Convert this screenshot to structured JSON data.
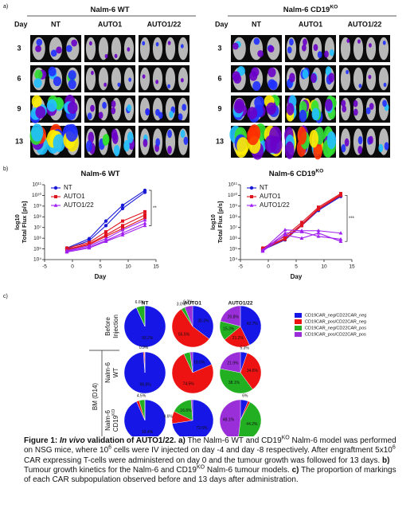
{
  "panel_a": {
    "label": "a)",
    "row_header": "Day",
    "days": [
      "3",
      "6",
      "9",
      "13"
    ],
    "groups": [
      {
        "title": {
          "text": "Nalm-6 WT"
        },
        "columns": [
          "NT",
          "AUTO1",
          "AUTO1/22"
        ]
      },
      {
        "title": {
          "text": "Nalm-6 CD19",
          "sup": "KO"
        },
        "columns": [
          "NT",
          "AUTO1",
          "AUTO1/22"
        ]
      }
    ]
  },
  "panel_b_label": "b)",
  "chart_data": [
    {
      "type": "line",
      "title": {
        "text": "Nalm-6 WT"
      },
      "x_label": "Day",
      "y_label": [
        "log10",
        "Total Flux [p/s]"
      ],
      "log_y": true,
      "legend": "top-left",
      "x": [
        -1,
        3,
        6,
        9,
        13
      ],
      "xlim": [
        -5,
        15
      ],
      "xticks": [
        -5,
        0,
        5,
        10,
        15
      ],
      "ylim": [
        10000,
        100000000000
      ],
      "yticks": [
        {
          "value": 10000,
          "label": "10⁴"
        },
        {
          "value": 100000,
          "label": "10⁵"
        },
        {
          "value": 1000000,
          "label": "10⁶"
        },
        {
          "value": 10000000,
          "label": "10⁷"
        },
        {
          "value": 100000000,
          "label": "10⁸"
        },
        {
          "value": 1000000000,
          "label": "10⁹"
        },
        {
          "value": 10000000000,
          "label": "10¹⁰"
        },
        {
          "value": 100000000000,
          "label": "10¹¹"
        }
      ],
      "annotation": "**",
      "series": [
        {
          "name": "NT",
          "color": "#1a1ad6",
          "marker": "circle",
          "mice": [
            [
              120000,
              900000,
              40000000,
              1200000000,
              30000000000
            ],
            [
              100000,
              600000,
              15000000,
              600000000,
              20000000000
            ]
          ]
        },
        {
          "name": "AUTO1",
          "color": "#e0141e",
          "marker": "square",
          "mice": [
            [
              120000,
              400000,
              4000000,
              40000000,
              300000000
            ],
            [
              90000,
              300000,
              2000000,
              15000000,
              150000000
            ],
            [
              80000,
              250000,
              1500000,
              8000000,
              80000000
            ]
          ]
        },
        {
          "name": "AUTO1/22",
          "color": "#a020f0",
          "marker": "triangle",
          "mice": [
            [
              70000,
              200000,
              900000,
              6000000,
              50000000
            ],
            [
              60000,
              150000,
              600000,
              3000000,
              25000000
            ],
            [
              50000,
              120000,
              500000,
              2000000,
              15000000
            ]
          ]
        }
      ]
    },
    {
      "type": "line",
      "title": {
        "text": "Nalm-6 CD19",
        "sup": "KO"
      },
      "x_label": "Day",
      "y_label": [
        "log10",
        "Total Flux [p/s]"
      ],
      "log_y": true,
      "legend": "top-left",
      "x": [
        -1,
        3,
        6,
        9,
        13
      ],
      "xlim": [
        -5,
        15
      ],
      "xticks": [
        -5,
        0,
        5,
        10,
        15
      ],
      "ylim": [
        10000,
        100000000000
      ],
      "yticks": [
        {
          "value": 10000,
          "label": "10⁴"
        },
        {
          "value": 100000,
          "label": "10⁵"
        },
        {
          "value": 1000000,
          "label": "10⁶"
        },
        {
          "value": 10000000,
          "label": "10⁷"
        },
        {
          "value": 100000000,
          "label": "10⁸"
        },
        {
          "value": 1000000000,
          "label": "10⁹"
        },
        {
          "value": 10000000000,
          "label": "10¹⁰"
        },
        {
          "value": 100000000000,
          "label": "10¹¹"
        }
      ],
      "annotation": "***",
      "series": [
        {
          "name": "NT",
          "color": "#1a1ad6",
          "marker": "circle",
          "mice": [
            [
              100000,
              1000000,
              20000000,
              500000000,
              10000000000
            ],
            [
              80000,
              700000,
              15000000,
              400000000,
              8000000000
            ]
          ]
        },
        {
          "name": "AUTO1",
          "color": "#e0141e",
          "marker": "square",
          "mice": [
            [
              120000,
              1500000,
              30000000,
              800000000,
              15000000000
            ],
            [
              100000,
              1000000,
              20000000,
              600000000,
              12000000000
            ],
            [
              90000,
              800000,
              15000000,
              500000000,
              10000000000
            ]
          ]
        },
        {
          "name": "AUTO1/22",
          "color": "#a020f0",
          "marker": "triangle",
          "mice": [
            [
              80000,
              6000000,
              5000000,
              5000000,
              3000000
            ],
            [
              70000,
              3000000,
              4000000,
              1500000,
              800000
            ],
            [
              60000,
              2000000,
              1000000,
              3000000,
              500000
            ]
          ]
        }
      ]
    }
  ],
  "panel_c": {
    "label": "c)",
    "type": "pie",
    "columns": [
      "NT",
      "AUTO1",
      "AUTO1/22"
    ],
    "categories": [
      "CD19CAR_neg/CD22CAR_neg",
      "CD19CAR_pos/CD22CAR_neg",
      "CD19CAR_neg/CD22CAR_pos",
      "CD19CAR_pos/CD22CAR_pos"
    ],
    "colors": [
      "#1616e6",
      "#ee1313",
      "#22b022",
      "#9a2ed8"
    ],
    "group_label": "BM (D14)",
    "rows": [
      {
        "label_lines": [
          {
            "text": "Before"
          },
          {
            "text": "Injection"
          }
        ],
        "pies": [
          {
            "values": [
              93.2,
              0.1,
              6.6,
              0.1
            ],
            "value_labels": [
              "93.2%",
              null,
              "6.6%",
              null
            ]
          },
          {
            "values": [
              35.3,
              55.5,
              3.0,
              6.2
            ],
            "value_labels": [
              "35.3%",
              "55.5%",
              "3.0%",
              "6.2%"
            ]
          },
          {
            "values": [
              42.7,
              21.2,
              15.3,
              20.8
            ],
            "value_labels": [
              "42.7%",
              "21.2%",
              "15.3%",
              "20.8%"
            ]
          }
        ]
      },
      {
        "label_lines": [
          {
            "text": "Nalm-6"
          },
          {
            "text": "WT"
          }
        ],
        "pies": [
          {
            "values": [
              98.8,
              0.9,
              0.2,
              0.1
            ],
            "value_labels": [
              "98.8%",
              "0.9%",
              null,
              null
            ]
          },
          {
            "values": [
              18.5,
              74.5,
              5.0,
              2.0
            ],
            "value_labels": [
              "18.5%",
              "74.5%",
              null,
              null
            ]
          },
          {
            "values": [
              5.3,
              34.6,
              38.1,
              21.9
            ],
            "value_labels": [
              "5.3%",
              "34.6%",
              "38.1%",
              "21.9%"
            ]
          }
        ]
      },
      {
        "label_lines": [
          {
            "text": "Nalm-6"
          },
          {
            "text": "CD19",
            "sup": "KO"
          }
        ],
        "pies": [
          {
            "values": [
              93.4,
              2.1,
              4.5,
              0.0
            ],
            "value_labels": [
              "93.4%",
              null,
              "4.5%",
              null
            ]
          },
          {
            "values": [
              72.6,
              9.6,
              16.6,
              1.2
            ],
            "value_labels": [
              "72.6%",
              "9.6%",
              "16.6%",
              null
            ]
          },
          {
            "values": [
              6.0,
              1.7,
              44.2,
              48.1
            ],
            "value_labels": [
              "6%",
              null,
              "44.2%",
              "48.1%"
            ]
          }
        ]
      }
    ]
  },
  "caption": {
    "segments": [
      {
        "text": "Figure 1: ",
        "style": "bold"
      },
      {
        "text": "In vivo",
        "style": "bolditalic"
      },
      {
        "text": " validation of AUTO1/22.",
        "style": "bold"
      },
      {
        "text": " a)",
        "style": "bold"
      },
      {
        "text": " The Nalm-6 WT and CD19",
        "style": "normal"
      },
      {
        "text": "KO",
        "style": "sup"
      },
      {
        "text": " Nalm-6 model was performed on NSG mice, where 10",
        "style": "normal"
      },
      {
        "text": "6",
        "style": "sup"
      },
      {
        "text": " cells were IV injected on day -4 and day -8 respectively. After engraftment 5x10",
        "style": "normal"
      },
      {
        "text": "6",
        "style": "sup"
      },
      {
        "text": " CAR expressing T-cells were administered on day 0 and the tumour growth was followed for 13 days. ",
        "style": "normal"
      },
      {
        "text": "b)",
        "style": "bold"
      },
      {
        "text": " Tumour growth kinetics for the Nalm-6 and CD19",
        "style": "normal"
      },
      {
        "text": "KO",
        "style": "sup"
      },
      {
        "text": " Nalm-6 tumour models. ",
        "style": "normal"
      },
      {
        "text": "c)",
        "style": "bold"
      },
      {
        "text": " The proportion of markings of each CAR subpopulation observed before and 13 days after administration.",
        "style": "normal"
      }
    ]
  }
}
